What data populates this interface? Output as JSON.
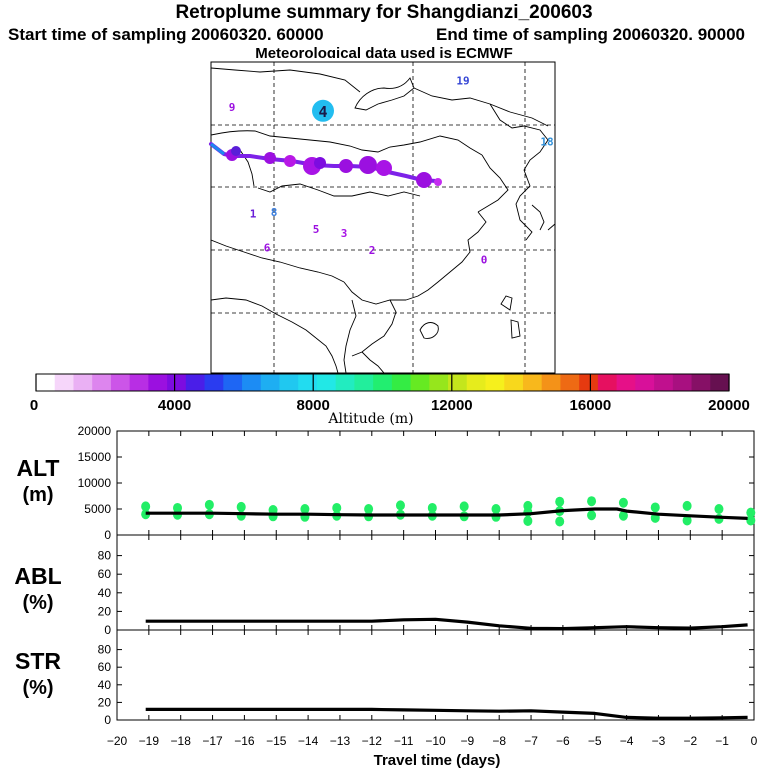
{
  "header": {
    "title": "Retroplume summary for Shangdianzi_200603",
    "start_label": "Start time of sampling 20060320. 60000",
    "end_label": "End time of sampling 20060320. 90000",
    "met_label": "Meteorological data used is ECMWF"
  },
  "map": {
    "day_markers": [
      {
        "label": "4",
        "color": "#22bdf0",
        "lon": 103.0,
        "lat": 54.0
      },
      {
        "label": "19",
        "color": "#3344d4",
        "lon": 113.0,
        "lat": 56.5
      },
      {
        "label": "18",
        "color": "#2f8fd8",
        "lon": 119.0,
        "lat": 51.5
      },
      {
        "label": "9",
        "color": "#9b10e0",
        "lon": 96.5,
        "lat": 54.3
      },
      {
        "label": "1",
        "color": "#6a1ed8",
        "lon": 98.0,
        "lat": 45.6
      },
      {
        "label": "8",
        "color": "#3a7fe0",
        "lon": 99.5,
        "lat": 45.7
      },
      {
        "label": "6",
        "color": "#9b10e0",
        "lon": 99.0,
        "lat": 42.8
      },
      {
        "label": "5",
        "color": "#9b10e0",
        "lon": 102.5,
        "lat": 44.3
      },
      {
        "label": "3",
        "color": "#a814e6",
        "lon": 104.5,
        "lat": 44.0
      },
      {
        "label": "2",
        "color": "#9b10e0",
        "lon": 106.5,
        "lat": 42.6
      },
      {
        "label": "0",
        "color": "#9b10e0",
        "lon": 114.5,
        "lat": 41.8
      }
    ],
    "receptor": "Shangdianzi"
  },
  "colorbar": {
    "ticks": [
      "0",
      "4000",
      "8000",
      "12000",
      "16000",
      "20000"
    ],
    "label": "Altitude (m)",
    "colors": [
      "#ffffff",
      "#f6d6fa",
      "#eab0f4",
      "#dd85ee",
      "#cc55e8",
      "#b82ee4",
      "#9b10e0",
      "#7d0ce0",
      "#4a1ee8",
      "#2a3cf0",
      "#1e66f4",
      "#1c8cf4",
      "#1eaef2",
      "#20c8f0",
      "#22dcf0",
      "#22e8e6",
      "#22ecc0",
      "#22ee9c",
      "#22ee70",
      "#34ec44",
      "#66ea22",
      "#96e61c",
      "#c4e61c",
      "#e6ec1c",
      "#f6f01c",
      "#f8d81c",
      "#f8b81c",
      "#f49218",
      "#ee6a14",
      "#e63a10",
      "#e61060",
      "#e61088",
      "#d8109a",
      "#c0108e",
      "#a81080",
      "#861066",
      "#661050"
    ]
  },
  "panels": {
    "alt_label_1": "ALT",
    "alt_label_2": "(m)",
    "abl_label_1": "ABL",
    "abl_label_2": "(%)",
    "str_label_1": "STR",
    "str_label_2": "(%)",
    "xlabel": "Travel time (days)"
  },
  "chart_data": [
    {
      "type": "line",
      "name": "ALT",
      "ylabel": "ALT (m)",
      "ylim": [
        0,
        20000
      ],
      "yticks": [
        0,
        5000,
        10000,
        15000,
        20000
      ],
      "x": [
        -19.1,
        -18,
        -17,
        -16,
        -15,
        -14,
        -13,
        -12,
        -11,
        -10,
        -9,
        -8,
        -7,
        -6,
        -5,
        -4.3,
        -4,
        -3,
        -2,
        -1,
        -0.2
      ],
      "values": [
        4200,
        4200,
        4200,
        4100,
        4000,
        4000,
        3900,
        3850,
        3850,
        3850,
        3850,
        3850,
        4100,
        4700,
        5000,
        5000,
        4600,
        4000,
        3700,
        3400,
        3200
      ],
      "scatter": [
        [
          -19.1,
          5500
        ],
        [
          -19.1,
          4000
        ],
        [
          -18.1,
          5200
        ],
        [
          -18.1,
          3900
        ],
        [
          -17.1,
          5800
        ],
        [
          -17.1,
          4000
        ],
        [
          -16.1,
          5400
        ],
        [
          -16.1,
          3700
        ],
        [
          -15.1,
          4800
        ],
        [
          -15.1,
          3600
        ],
        [
          -14.1,
          5000
        ],
        [
          -14.1,
          3500
        ],
        [
          -13.1,
          5200
        ],
        [
          -13.1,
          3700
        ],
        [
          -12.1,
          5000
        ],
        [
          -12.1,
          3600
        ],
        [
          -11.1,
          5700
        ],
        [
          -11.1,
          3900
        ],
        [
          -10.1,
          5200
        ],
        [
          -10.1,
          3700
        ],
        [
          -9.1,
          5500
        ],
        [
          -9.1,
          3600
        ],
        [
          -8.1,
          5000
        ],
        [
          -8.1,
          3500
        ],
        [
          -7.1,
          5600
        ],
        [
          -7.1,
          4400
        ],
        [
          -7.1,
          2700
        ],
        [
          -6.1,
          6400
        ],
        [
          -6.1,
          4600
        ],
        [
          -6.1,
          2600
        ],
        [
          -5.1,
          6500
        ],
        [
          -5.1,
          3800
        ],
        [
          -4.1,
          6200
        ],
        [
          -4.1,
          3700
        ],
        [
          -3.1,
          5300
        ],
        [
          -3.1,
          3300
        ],
        [
          -2.1,
          5600
        ],
        [
          -2.1,
          2800
        ],
        [
          -1.1,
          5000
        ],
        [
          -1.1,
          3100
        ],
        [
          -0.1,
          4300
        ],
        [
          -0.1,
          2800
        ]
      ]
    },
    {
      "type": "line",
      "name": "ABL",
      "ylabel": "ABL (%)",
      "ylim": [
        0,
        100
      ],
      "yticks": [
        0,
        20,
        40,
        60,
        80
      ],
      "x": [
        -19.1,
        -18,
        -17,
        -16,
        -15,
        -14,
        -13,
        -12,
        -11,
        -10,
        -9,
        -8,
        -7,
        -6,
        -5,
        -4,
        -3,
        -2,
        -1,
        -0.2
      ],
      "values": [
        9.5,
        9.5,
        9.5,
        9.5,
        9.5,
        9.5,
        9.5,
        9.5,
        11,
        11.5,
        8.5,
        4.5,
        1.8,
        1.5,
        2.5,
        3.5,
        2.5,
        2.0,
        3.5,
        5.5
      ]
    },
    {
      "type": "line",
      "name": "STR",
      "ylabel": "STR (%)",
      "ylim": [
        0,
        100
      ],
      "yticks": [
        0,
        20,
        40,
        60,
        80
      ],
      "x": [
        -19.1,
        -18,
        -17,
        -16,
        -15,
        -14,
        -13,
        -12,
        -11,
        -10,
        -9,
        -8,
        -7,
        -6,
        -5,
        -4,
        -3,
        -2,
        -1,
        -0.2
      ],
      "values": [
        12,
        12,
        12,
        12,
        12,
        12,
        12,
        12,
        11.5,
        11,
        10.5,
        10,
        10.5,
        9,
        7.5,
        3,
        2,
        2,
        2.5,
        3
      ],
      "xlim": [
        -20,
        0
      ],
      "xticks": [
        -20,
        -19,
        -18,
        -17,
        -16,
        -15,
        -14,
        -13,
        -12,
        -11,
        -10,
        -9,
        -8,
        -7,
        -6,
        -5,
        -4,
        -3,
        -2,
        -1,
        0
      ]
    }
  ]
}
